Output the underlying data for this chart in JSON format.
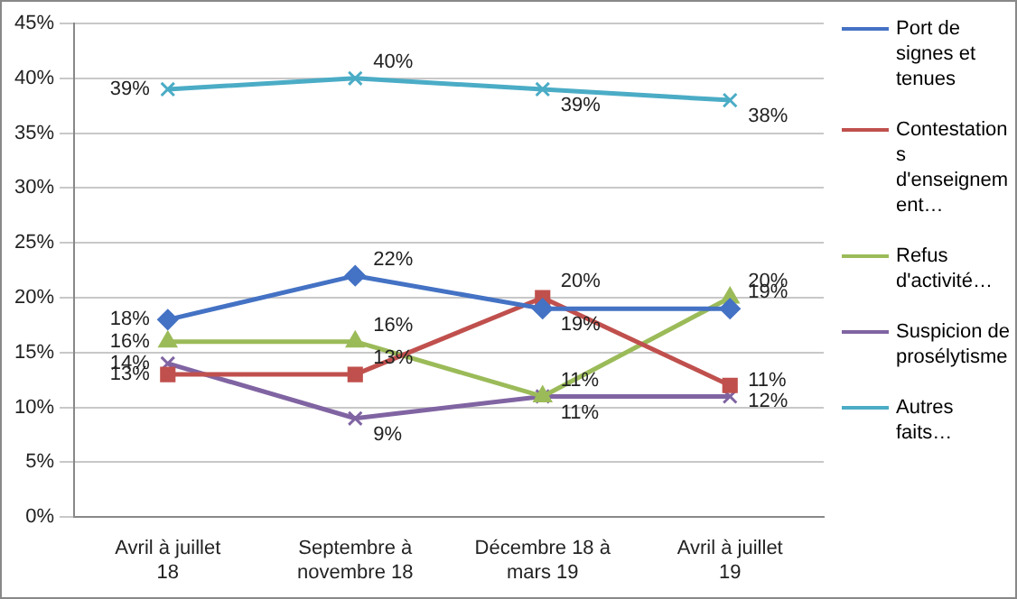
{
  "chart_data": {
    "type": "line",
    "categories": [
      "Avril à juillet 18",
      "Septembre à novembre 18",
      "Décembre 18 à mars 19",
      "Avril à juillet 19"
    ],
    "series": [
      {
        "name": "Port de signes et tenues",
        "color": "#4472c4",
        "marker": "diamond",
        "values": [
          18,
          22,
          19,
          19
        ],
        "value_labels": [
          "18%",
          "22%",
          "19%",
          "19%"
        ]
      },
      {
        "name": "Contestations d'enseignement…",
        "color": "#c0504d",
        "marker": "square",
        "values": [
          13,
          13,
          20,
          12
        ],
        "value_labels": [
          "13%",
          "13%",
          "20%",
          "12%"
        ]
      },
      {
        "name": "Refus d'activité…",
        "color": "#9bbb59",
        "marker": "triangle",
        "values": [
          16,
          16,
          11,
          20
        ],
        "value_labels": [
          "16%",
          "16%",
          "11%",
          "20%"
        ]
      },
      {
        "name": "Suspicion de prosélytisme",
        "color": "#8064a2",
        "marker": "cross",
        "values": [
          14,
          9,
          11,
          11
        ],
        "value_labels": [
          "14%",
          "9%",
          "11%",
          "11%"
        ]
      },
      {
        "name": "Autres faits…",
        "color": "#4bacc6",
        "marker": "cross",
        "values": [
          39,
          40,
          39,
          38
        ],
        "value_labels": [
          "39%",
          "40%",
          "39%",
          "38%"
        ]
      }
    ],
    "ylim": [
      0,
      45
    ],
    "yticks": [
      {
        "value": 0,
        "label": "0%"
      },
      {
        "value": 5,
        "label": "5%"
      },
      {
        "value": 10,
        "label": "10%"
      },
      {
        "value": 15,
        "label": "15%"
      },
      {
        "value": 20,
        "label": "20%"
      },
      {
        "value": 25,
        "label": "25%"
      },
      {
        "value": 30,
        "label": "30%"
      },
      {
        "value": 35,
        "label": "35%"
      },
      {
        "value": 40,
        "label": "40%"
      },
      {
        "value": 45,
        "label": "45%"
      }
    ],
    "grid": "y",
    "legend": "right",
    "line_style": "solid"
  }
}
